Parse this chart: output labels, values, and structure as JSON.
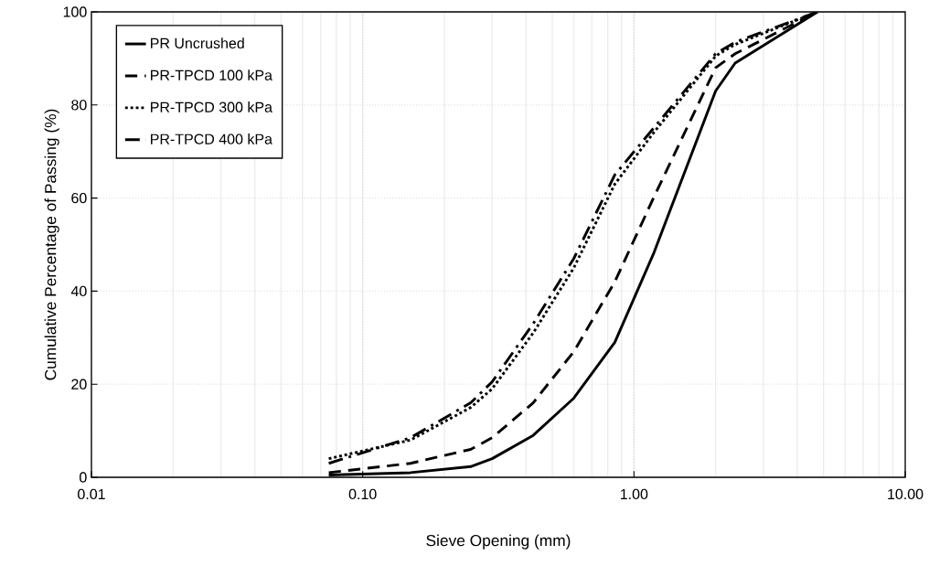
{
  "chart_data": {
    "type": "line",
    "xlabel": "Sieve Opening (mm)",
    "ylabel": "Cumulative Percentage of Passing (%)",
    "x": [
      0.075,
      0.15,
      0.25,
      0.3,
      0.425,
      0.6,
      0.85,
      1.18,
      2.0,
      2.36,
      4.75
    ],
    "series": [
      {
        "name": "PR Uncrushed",
        "color": "#000000",
        "line_style": "solid",
        "values": [
          0.5,
          1,
          2.3,
          4,
          9,
          17,
          29,
          48,
          83,
          89,
          100
        ]
      },
      {
        "name": "PR-TPCD 100 kPa",
        "color": "#000000",
        "line_style": "dashed",
        "values": [
          1,
          3,
          6,
          8.5,
          16,
          27,
          42,
          60,
          88,
          91,
          100
        ]
      },
      {
        "name": "PR-TPCD 300 kPa",
        "color": "#000000",
        "line_style": "dotted",
        "values": [
          4,
          8,
          15,
          19,
          31,
          45,
          63,
          74,
          90.5,
          93,
          100
        ]
      },
      {
        "name": "PR-TPCD 400 kPa",
        "color": "#000000",
        "line_style": "dashdot",
        "values": [
          3,
          8.5,
          16,
          20.5,
          33,
          47,
          65,
          75,
          91,
          93.5,
          100
        ]
      }
    ],
    "log": "x",
    "xlim": [
      0.01,
      10
    ],
    "xticks": [
      0.01,
      {
        "value": 0.1,
        "label": "0.10"
      },
      {
        "value": 1,
        "label": "1.00"
      },
      {
        "value": 10,
        "label": "10.00"
      }
    ],
    "ylim": [
      0,
      100
    ],
    "yticks": [
      0,
      20,
      40,
      60,
      80,
      100
    ],
    "grid": true,
    "legend": "top left",
    "marker": "none"
  }
}
